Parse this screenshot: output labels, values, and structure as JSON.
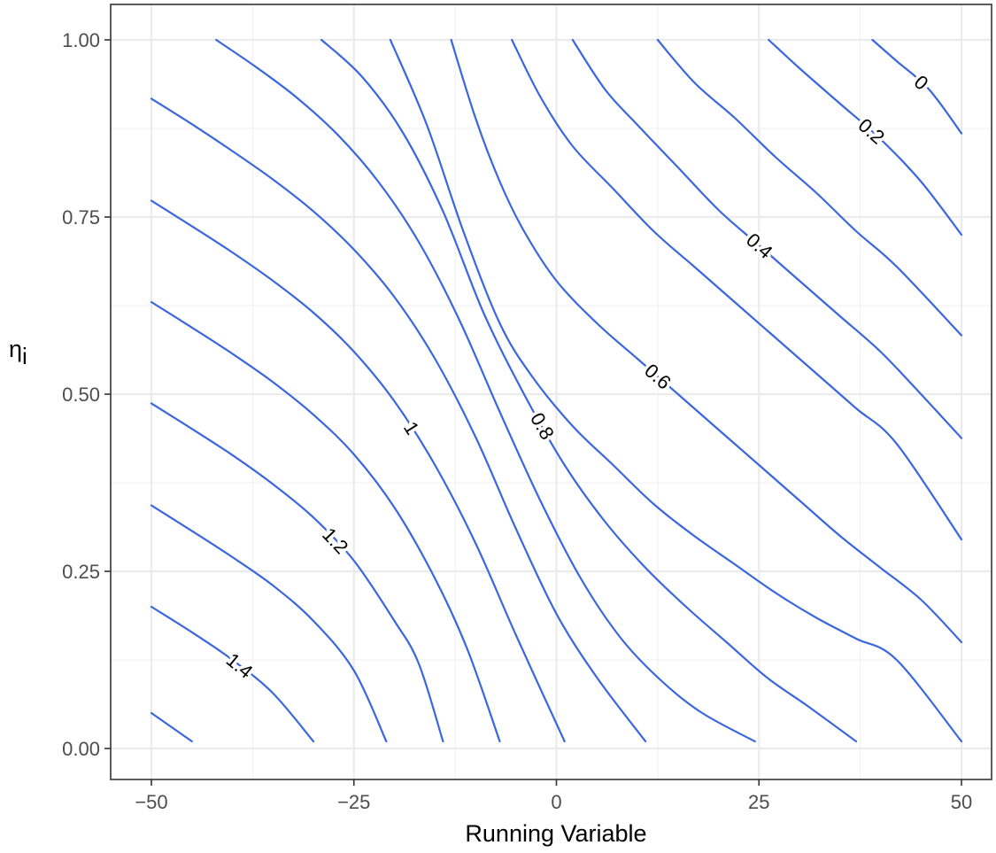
{
  "chart_data": {
    "type": "contour",
    "title": "",
    "xlabel": "Running Variable",
    "ylabel": "η",
    "ylabel_subscript": "i",
    "xlim": [
      -50,
      50
    ],
    "ylim": [
      0,
      1
    ],
    "x_ticks": [
      -50,
      -25,
      0,
      25,
      50
    ],
    "x_tick_labels": [
      "−50",
      "−25",
      "0",
      "25",
      "50"
    ],
    "y_ticks": [
      0,
      0.25,
      0.5,
      0.75,
      1
    ],
    "y_tick_labels": [
      "0.00",
      "0.25",
      "0.50",
      "0.75",
      "1.00"
    ],
    "grid": true,
    "legend": "none",
    "line_color": "#3a66e0",
    "series": [
      {
        "points": [
          [
            -50,
            0.05
          ],
          [
            -45,
            0.01
          ]
        ]
      },
      {
        "label": "1.4",
        "points": [
          [
            -50,
            0.2
          ],
          [
            -45,
            0.164
          ],
          [
            -40,
            0.125
          ],
          [
            -35,
            0.078
          ],
          [
            -30,
            0.01
          ]
        ]
      },
      {
        "points": [
          [
            -50,
            0.343
          ],
          [
            -45,
            0.307
          ],
          [
            -40,
            0.27
          ],
          [
            -35,
            0.23
          ],
          [
            -30,
            0.18
          ],
          [
            -25,
            0.11
          ],
          [
            -21,
            0.01
          ]
        ]
      },
      {
        "label": "1.2",
        "points": [
          [
            -50,
            0.487
          ],
          [
            -45,
            0.451
          ],
          [
            -40,
            0.414
          ],
          [
            -35,
            0.373
          ],
          [
            -30,
            0.326
          ],
          [
            -25,
            0.265
          ],
          [
            -20,
            0.18
          ],
          [
            -17,
            0.12
          ],
          [
            -14,
            0.01
          ]
        ]
      },
      {
        "points": [
          [
            -50,
            0.63
          ],
          [
            -45,
            0.594
          ],
          [
            -40,
            0.557
          ],
          [
            -35,
            0.517
          ],
          [
            -30,
            0.471
          ],
          [
            -25,
            0.415
          ],
          [
            -20,
            0.34
          ],
          [
            -15,
            0.24
          ],
          [
            -11,
            0.14
          ],
          [
            -7,
            0.01
          ]
        ]
      },
      {
        "label": "1",
        "points": [
          [
            -50,
            0.773
          ],
          [
            -45,
            0.737
          ],
          [
            -40,
            0.7
          ],
          [
            -35,
            0.66
          ],
          [
            -30,
            0.615
          ],
          [
            -25,
            0.56
          ],
          [
            -20,
            0.49
          ],
          [
            -15,
            0.4
          ],
          [
            -10,
            0.29
          ],
          [
            -5,
            0.16
          ],
          [
            1,
            0.01
          ]
        ]
      },
      {
        "points": [
          [
            -50,
            0.917
          ],
          [
            -45,
            0.881
          ],
          [
            -40,
            0.843
          ],
          [
            -35,
            0.803
          ],
          [
            -30,
            0.758
          ],
          [
            -25,
            0.704
          ],
          [
            -20,
            0.637
          ],
          [
            -15,
            0.55
          ],
          [
            -10,
            0.44
          ],
          [
            -5,
            0.31
          ],
          [
            0,
            0.19
          ],
          [
            5,
            0.1
          ],
          [
            11,
            0.01
          ]
        ]
      },
      {
        "points": [
          [
            -42,
            1.0
          ],
          [
            -37,
            0.961
          ],
          [
            -32,
            0.918
          ],
          [
            -27,
            0.866
          ],
          [
            -22,
            0.8
          ],
          [
            -17,
            0.715
          ],
          [
            -12,
            0.605
          ],
          [
            -7,
            0.475
          ],
          [
            -2,
            0.35
          ],
          [
            3,
            0.24
          ],
          [
            8,
            0.155
          ],
          [
            13,
            0.095
          ],
          [
            18,
            0.05
          ],
          [
            24.5,
            0.01
          ]
        ]
      },
      {
        "label": "0.8",
        "points": [
          [
            -29,
            1.0
          ],
          [
            -24,
            0.948
          ],
          [
            -19,
            0.87
          ],
          [
            -14,
            0.758
          ],
          [
            -9,
            0.615
          ],
          [
            -4,
            0.5
          ],
          [
            1,
            0.4
          ],
          [
            6,
            0.32
          ],
          [
            11,
            0.255
          ],
          [
            16,
            0.2
          ],
          [
            21,
            0.15
          ],
          [
            26,
            0.1
          ],
          [
            31,
            0.06
          ],
          [
            37,
            0.01
          ]
        ]
      },
      {
        "points": [
          [
            -20.5,
            1.0
          ],
          [
            -16,
            0.88
          ],
          [
            -11.5,
            0.73
          ],
          [
            -7,
            0.6
          ],
          [
            -3,
            0.525
          ],
          [
            2,
            0.455
          ],
          [
            7,
            0.4
          ],
          [
            12,
            0.345
          ],
          [
            17,
            0.3
          ],
          [
            22,
            0.26
          ],
          [
            27,
            0.22
          ],
          [
            32,
            0.185
          ],
          [
            37,
            0.155
          ],
          [
            42,
            0.125
          ],
          [
            50,
            0.01
          ]
        ]
      },
      {
        "label": "0.6",
        "points": [
          [
            -13,
            1.0
          ],
          [
            -10,
            0.89
          ],
          [
            -7,
            0.8
          ],
          [
            -4,
            0.73
          ],
          [
            0,
            0.66
          ],
          [
            5,
            0.6
          ],
          [
            10,
            0.55
          ],
          [
            15,
            0.5
          ],
          [
            20,
            0.45
          ],
          [
            25,
            0.4
          ],
          [
            30,
            0.35
          ],
          [
            35,
            0.3
          ],
          [
            40,
            0.255
          ],
          [
            45,
            0.21
          ],
          [
            50,
            0.15
          ]
        ]
      },
      {
        "points": [
          [
            -5.5,
            1.0
          ],
          [
            -2,
            0.92
          ],
          [
            2,
            0.85
          ],
          [
            7,
            0.79
          ],
          [
            12,
            0.73
          ],
          [
            17,
            0.68
          ],
          [
            22,
            0.63
          ],
          [
            27,
            0.58
          ],
          [
            32,
            0.53
          ],
          [
            37,
            0.48
          ],
          [
            42,
            0.43
          ],
          [
            50,
            0.295
          ]
        ]
      },
      {
        "label": "0.4",
        "points": [
          [
            2,
            1.0
          ],
          [
            6,
            0.93
          ],
          [
            10,
            0.88
          ],
          [
            15,
            0.82
          ],
          [
            20,
            0.76
          ],
          [
            25,
            0.71
          ],
          [
            30,
            0.66
          ],
          [
            35,
            0.61
          ],
          [
            40,
            0.56
          ],
          [
            45,
            0.5
          ],
          [
            50,
            0.438
          ]
        ]
      },
      {
        "points": [
          [
            12.5,
            1.0
          ],
          [
            17,
            0.94
          ],
          [
            22,
            0.89
          ],
          [
            27,
            0.835
          ],
          [
            32,
            0.785
          ],
          [
            37,
            0.73
          ],
          [
            42,
            0.68
          ],
          [
            50,
            0.583
          ]
        ]
      },
      {
        "label": "0.2",
        "points": [
          [
            26.2,
            1.0
          ],
          [
            30,
            0.96
          ],
          [
            35,
            0.91
          ],
          [
            40,
            0.86
          ],
          [
            45,
            0.8
          ],
          [
            50,
            0.725
          ]
        ]
      },
      {
        "label": "0",
        "points": [
          [
            39,
            1.0
          ],
          [
            42,
            0.97
          ],
          [
            46,
            0.93
          ],
          [
            50,
            0.868
          ]
        ]
      }
    ]
  }
}
